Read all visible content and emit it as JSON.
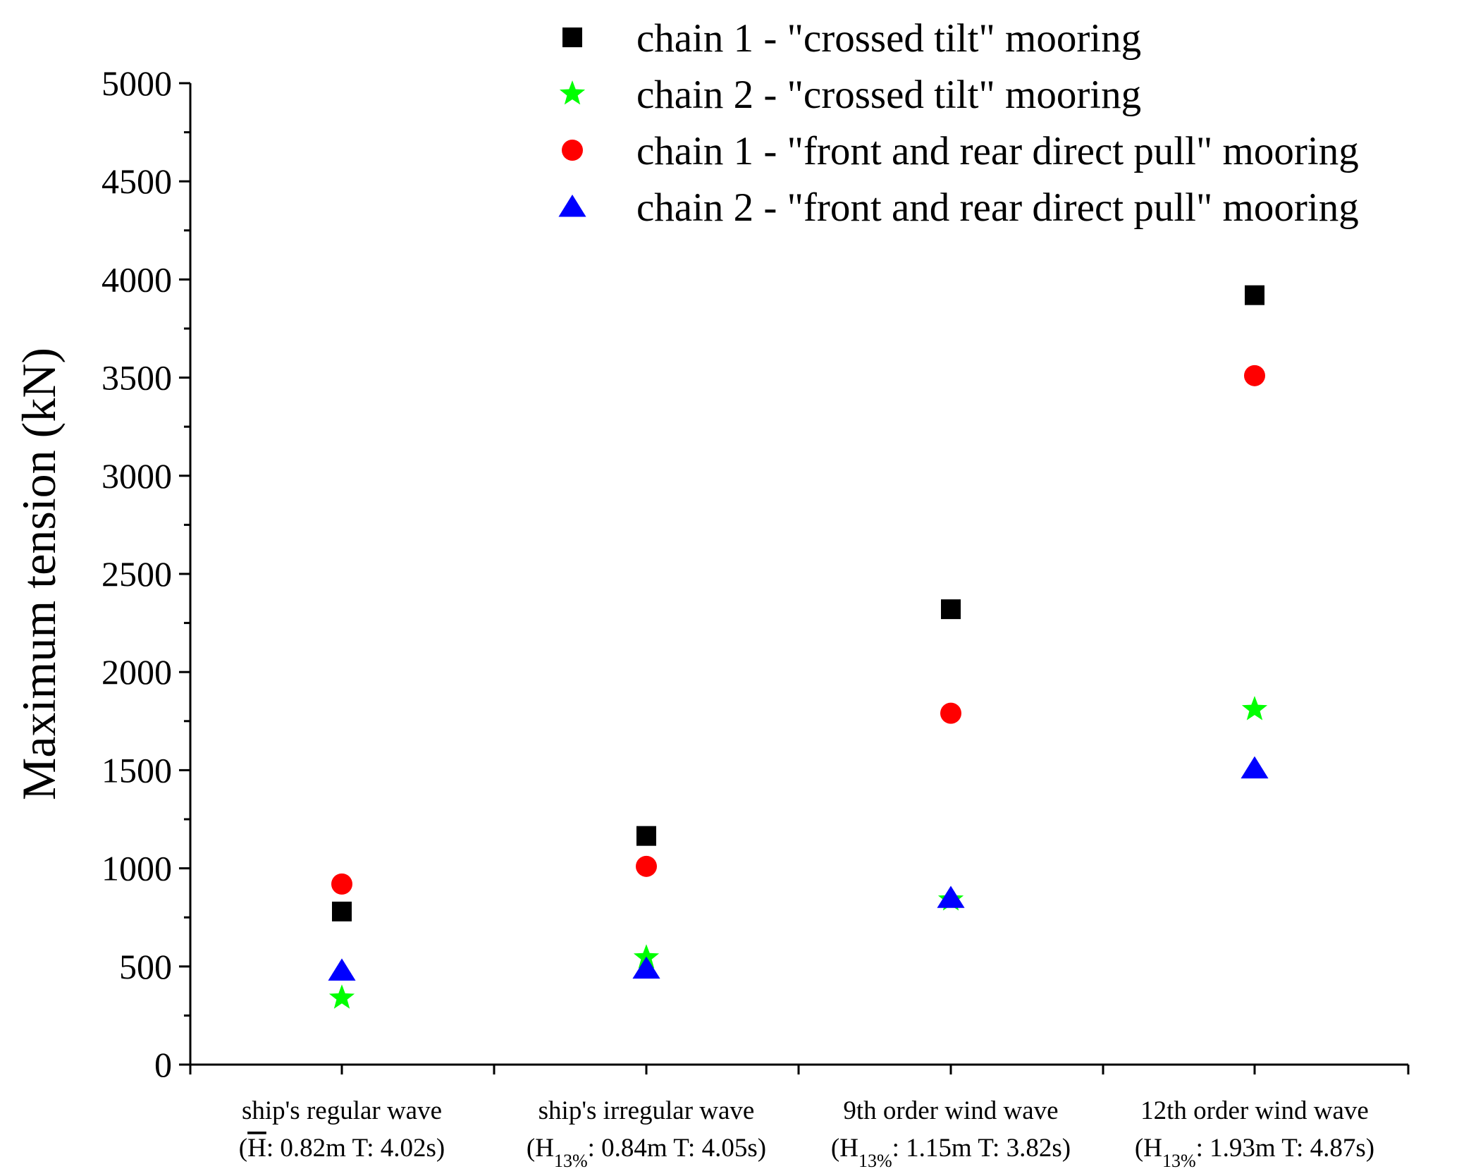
{
  "chart_data": {
    "type": "scatter",
    "title": "",
    "xlabel": "",
    "ylabel": "Maximum tension (kN)",
    "ylim": [
      0,
      5000
    ],
    "yticks": [
      "0",
      "500",
      "1000",
      "1500",
      "2000",
      "2500",
      "3000",
      "3500",
      "4000",
      "4500",
      "5000"
    ],
    "categories": [
      {
        "line1": "ship's regular wave",
        "sym": "H",
        "overline": true,
        "sub": "",
        "rest": ": 0.82m T: 4.02s)"
      },
      {
        "line1": "ship's irregular wave",
        "sym": "H",
        "overline": false,
        "sub": "13%",
        "rest": ": 0.84m T: 4.05s)"
      },
      {
        "line1": "9th order wind wave",
        "sym": "H",
        "overline": false,
        "sub": "13%",
        "rest": ": 1.15m T: 3.82s)"
      },
      {
        "line1": "12th order wind wave",
        "sym": "H",
        "overline": false,
        "sub": "13%",
        "rest": ": 1.93m T: 4.87s)"
      }
    ],
    "legend_position": "top-right",
    "series": [
      {
        "name": "chain 1 - \"crossed tilt\" mooring",
        "marker": "square",
        "color": "#000000",
        "values": [
          780,
          1165,
          2320,
          3920
        ]
      },
      {
        "name": "chain 2 - \"crossed tilt\" mooring",
        "marker": "star",
        "color": "#00ff00",
        "values": [
          340,
          545,
          840,
          1810
        ]
      },
      {
        "name": "chain 1 - \"front and rear direct pull\" mooring",
        "marker": "circle",
        "color": "#ff0000",
        "values": [
          920,
          1010,
          1790,
          3510
        ]
      },
      {
        "name": "chain 2 - \"front and rear direct pull\" mooring",
        "marker": "triangle",
        "color": "#0000ff",
        "values": [
          480,
          490,
          850,
          1510
        ]
      }
    ]
  }
}
